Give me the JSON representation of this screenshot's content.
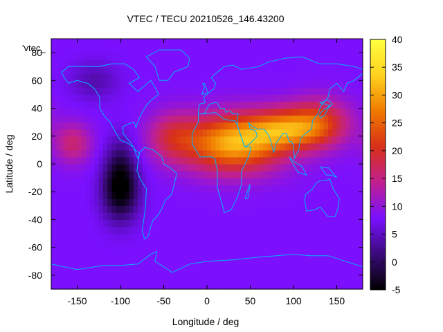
{
  "chart_data": {
    "type": "heatmap",
    "title": "VTEC / TECU 20210526_146.43200",
    "xlabel": "Longitude / deg",
    "ylabel": "Latitude / deg",
    "xlim": [
      -180,
      180
    ],
    "ylim": [
      -90,
      90
    ],
    "xticks": [
      -150,
      -100,
      -50,
      0,
      50,
      100,
      150
    ],
    "yticks": [
      -80,
      -60,
      -40,
      -20,
      0,
      20,
      40,
      60,
      80
    ],
    "legend_key": "'vtec_",
    "colorbar": {
      "range": [
        -5,
        40
      ],
      "ticks": [
        -5,
        0,
        5,
        10,
        15,
        20,
        25,
        30,
        35,
        40
      ],
      "palette": [
        "#000000",
        "#3a0a7a",
        "#7a10ff",
        "#c02090",
        "#d83018",
        "#f07a00",
        "#ffd21e",
        "#ffff40"
      ]
    },
    "grid": false,
    "features": [
      {
        "lon": 30,
        "lat": 15,
        "value": 31,
        "lon_spread": 40,
        "lat_spread": 14
      },
      {
        "lon": 90,
        "lat": 25,
        "value": 24,
        "lon_spread": 30,
        "lat_spread": 10
      },
      {
        "lon": 130,
        "lat": 30,
        "value": 20,
        "lon_spread": 25,
        "lat_spread": 12
      },
      {
        "lon": -40,
        "lat": 20,
        "value": 16,
        "lon_spread": 20,
        "lat_spread": 12
      },
      {
        "lon": -155,
        "lat": 15,
        "value": 16,
        "lon_spread": 15,
        "lat_spread": 10
      },
      {
        "lon": -100,
        "lat": -20,
        "value": -4,
        "lon_spread": 15,
        "lat_spread": 15
      },
      {
        "lon": -130,
        "lat": 60,
        "value": 4,
        "lon_spread": 20,
        "lat_spread": 10
      },
      {
        "lon": -100,
        "lat": 0,
        "value": 2,
        "lon_spread": 12,
        "lat_spread": 15
      }
    ],
    "background_value": 8
  }
}
